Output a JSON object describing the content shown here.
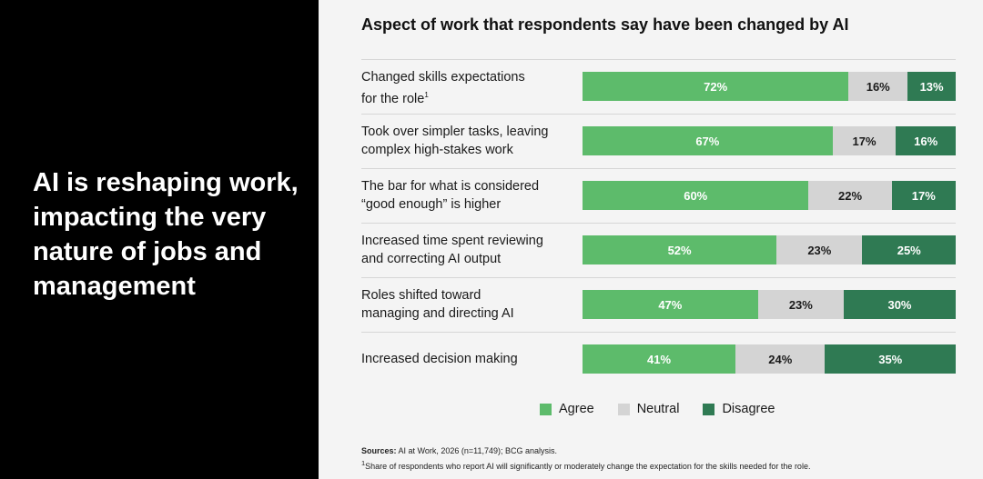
{
  "headline": "AI is reshaping work, impacting the very nature of jobs and management",
  "colors": {
    "agree": "#5dbb6b",
    "neutral": "#d4d4d4",
    "disagree": "#2f7a53"
  },
  "sources": {
    "label": "Sources:",
    "text": " AI at Work, 2026 (n=11,749); BCG analysis."
  },
  "footnote": {
    "marker": "1",
    "text": "Share of respondents who report AI will significantly or moderately change the expectation for the skills needed for the role."
  },
  "chart_data": {
    "type": "bar",
    "orientation": "horizontal",
    "stacked": true,
    "normalized_100": true,
    "title": "Aspect of work that respondents say have been changed by AI",
    "categories": [
      "Changed skills expectations\nfor the role",
      "Took over simpler tasks, leaving\ncomplex high-stakes work",
      "The bar for what is considered\n“good enough” is higher",
      "Increased time spent reviewing\nand correcting AI output",
      "Roles shifted toward\nmanaging and directing AI",
      "Increased decision making"
    ],
    "category_footnote_markers": [
      "1",
      "",
      "",
      "",
      "",
      ""
    ],
    "series": [
      {
        "name": "Agree",
        "values": [
          72,
          67,
          60,
          52,
          47,
          41
        ]
      },
      {
        "name": "Neutral",
        "values": [
          16,
          17,
          22,
          23,
          23,
          24
        ]
      },
      {
        "name": "Disagree",
        "values": [
          13,
          16,
          17,
          25,
          30,
          35
        ]
      }
    ],
    "value_suffix": "%",
    "legend": [
      "Agree",
      "Neutral",
      "Disagree"
    ],
    "legend_position": "bottom",
    "grid": false
  }
}
